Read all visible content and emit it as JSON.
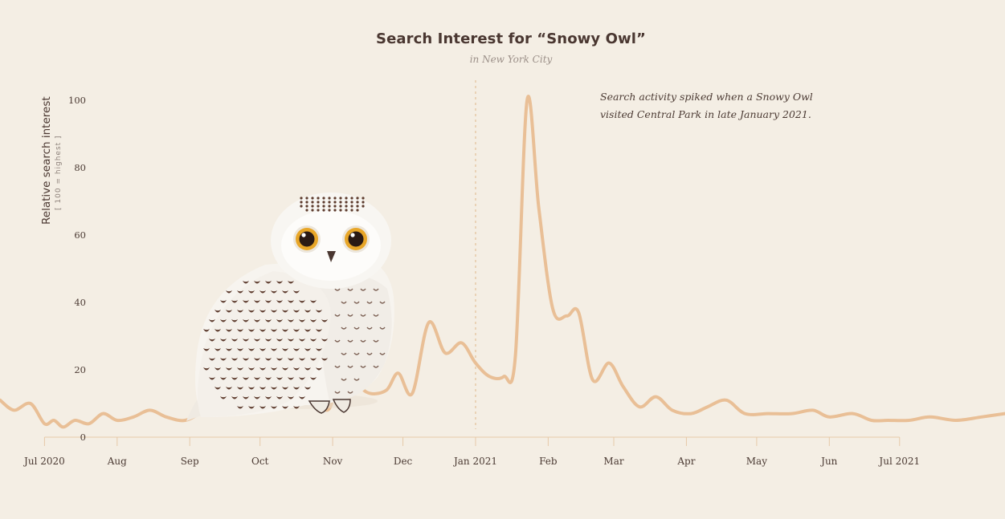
{
  "chart_data": {
    "type": "line",
    "title": "Search Interest for “Snowy Owl”",
    "subtitle": "in New York City",
    "ylabel": "Relative search interest",
    "ylabel_note": "[ 100 = highest ]",
    "xlabel": "",
    "ylim": [
      0,
      100
    ],
    "yticks": [
      0,
      20,
      40,
      60,
      80,
      100
    ],
    "xlim": [
      "2020-06-12",
      "2021-08-15"
    ],
    "x_tick_labels": [
      {
        "date": "2020-07-01",
        "label": "Jul 2020"
      },
      {
        "date": "2020-08-01",
        "label": "Aug"
      },
      {
        "date": "2020-09-01",
        "label": "Sep"
      },
      {
        "date": "2020-10-01",
        "label": "Oct"
      },
      {
        "date": "2020-11-01",
        "label": "Nov"
      },
      {
        "date": "2020-12-01",
        "label": "Dec"
      },
      {
        "date": "2021-01-01",
        "label": "Jan 2021"
      },
      {
        "date": "2021-02-01",
        "label": "Feb"
      },
      {
        "date": "2021-03-01",
        "label": "Mar"
      },
      {
        "date": "2021-04-01",
        "label": "Apr"
      },
      {
        "date": "2021-05-01",
        "label": "May"
      },
      {
        "date": "2021-06-01",
        "label": "Jun"
      },
      {
        "date": "2021-07-01",
        "label": "Jul 2021"
      }
    ],
    "marker_line_date": "2021-01-01",
    "series": [
      {
        "color": "#e9bf96",
        "points": [
          [
            "2020-06-12",
            11
          ],
          [
            "2020-06-18",
            8
          ],
          [
            "2020-06-25",
            10
          ],
          [
            "2020-07-01",
            4
          ],
          [
            "2020-07-05",
            5
          ],
          [
            "2020-07-09",
            3
          ],
          [
            "2020-07-14",
            5
          ],
          [
            "2020-07-20",
            4
          ],
          [
            "2020-07-26",
            7
          ],
          [
            "2020-08-01",
            5
          ],
          [
            "2020-08-08",
            6
          ],
          [
            "2020-08-15",
            8
          ],
          [
            "2020-08-22",
            6
          ],
          [
            "2020-08-30",
            5
          ],
          [
            "2020-09-07",
            8
          ],
          [
            "2020-09-14",
            12
          ],
          [
            "2020-09-18",
            22
          ],
          [
            "2020-09-23",
            18
          ],
          [
            "2020-09-30",
            10
          ],
          [
            "2020-10-06",
            9
          ],
          [
            "2020-10-13",
            11
          ],
          [
            "2020-10-19",
            12
          ],
          [
            "2020-10-26",
            10
          ],
          [
            "2020-10-31",
            9
          ],
          [
            "2020-11-06",
            25
          ],
          [
            "2020-11-12",
            16
          ],
          [
            "2020-11-17",
            13
          ],
          [
            "2020-11-24",
            14
          ],
          [
            "2020-11-29",
            19
          ],
          [
            "2020-12-05",
            13
          ],
          [
            "2020-12-12",
            34
          ],
          [
            "2020-12-19",
            25
          ],
          [
            "2020-12-26",
            28
          ],
          [
            "2021-01-01",
            22
          ],
          [
            "2021-01-07",
            18
          ],
          [
            "2021-01-13",
            18
          ],
          [
            "2021-01-18",
            24
          ],
          [
            "2021-01-23",
            100
          ],
          [
            "2021-01-28",
            68
          ],
          [
            "2021-02-03",
            38
          ],
          [
            "2021-02-09",
            36
          ],
          [
            "2021-02-14",
            37
          ],
          [
            "2021-02-20",
            17
          ],
          [
            "2021-02-27",
            22
          ],
          [
            "2021-03-05",
            15
          ],
          [
            "2021-03-12",
            9
          ],
          [
            "2021-03-19",
            12
          ],
          [
            "2021-03-26",
            8
          ],
          [
            "2021-04-03",
            7
          ],
          [
            "2021-04-10",
            9
          ],
          [
            "2021-04-18",
            11
          ],
          [
            "2021-04-26",
            7
          ],
          [
            "2021-05-06",
            7
          ],
          [
            "2021-05-16",
            7
          ],
          [
            "2021-05-25",
            8
          ],
          [
            "2021-06-01",
            6
          ],
          [
            "2021-06-11",
            7
          ],
          [
            "2021-06-19",
            5
          ],
          [
            "2021-06-26",
            5
          ],
          [
            "2021-07-05",
            5
          ],
          [
            "2021-07-14",
            6
          ],
          [
            "2021-07-25",
            5
          ],
          [
            "2021-08-05",
            6
          ],
          [
            "2021-08-15",
            7
          ]
        ]
      }
    ],
    "annotation_lines": [
      "Search activity spiked when a Snowy Owl",
      "visited Central Park in late January 2021."
    ],
    "grid": false,
    "legend": "none"
  },
  "illustration": {
    "icon": "snowy-owl-icon",
    "colors": {
      "owl_white": "#f7f4ef",
      "owl_shadow": "#ddd6cd",
      "spots": "#5c3a2c",
      "eye_iris": "#e8a628",
      "beak": "#4a3731"
    }
  },
  "colors": {
    "background": "#f4eee4",
    "line": "#e9bf96",
    "axis": "#e6c9a8",
    "text": "#4b3a33",
    "muted_text": "#9b8f88"
  }
}
